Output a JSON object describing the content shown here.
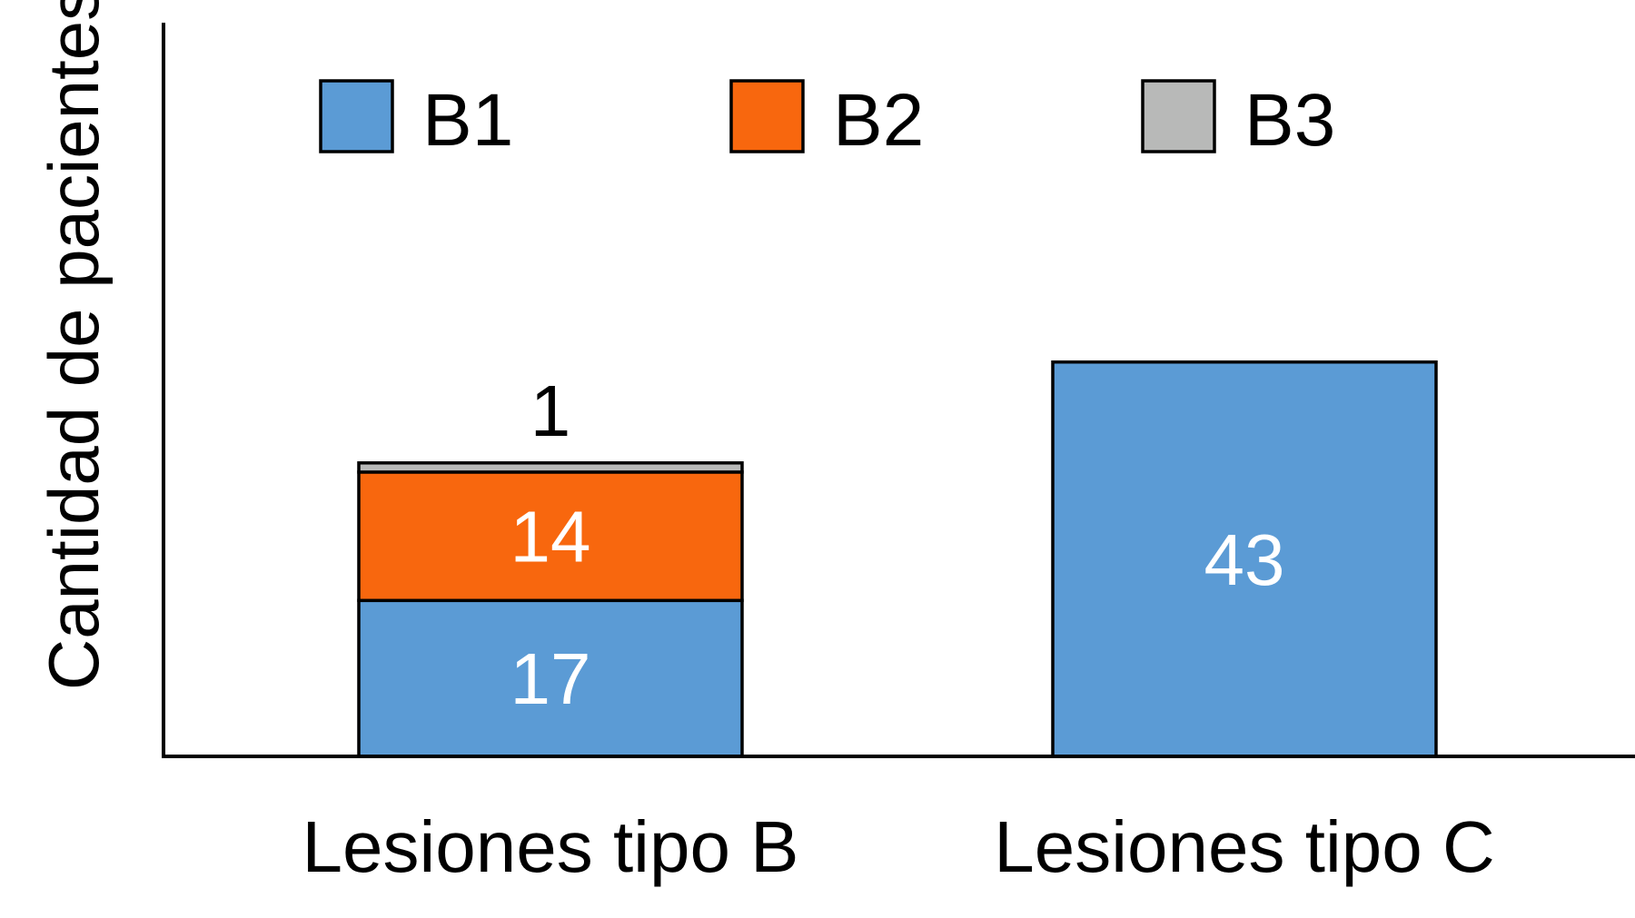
{
  "chart_data": {
    "type": "bar",
    "stacked": true,
    "title": "",
    "xlabel": "",
    "ylabel": "Cantidad de pacientes",
    "ylim": [
      0,
      80
    ],
    "grid": false,
    "legend_position": "top",
    "categories": [
      "Lesiones tipo B",
      "Lesiones tipo C"
    ],
    "series": [
      {
        "name": "B1",
        "color": "#5b9bd5",
        "values": [
          17,
          43
        ]
      },
      {
        "name": "B2",
        "color": "#f8670e",
        "values": [
          14,
          0
        ]
      },
      {
        "name": "B3",
        "color": "#b8b9b8",
        "values": [
          1,
          0
        ]
      }
    ],
    "data_labels": [
      {
        "category": 0,
        "series": 0,
        "text": "17",
        "color": "#ffffff",
        "placement": "inside"
      },
      {
        "category": 0,
        "series": 1,
        "text": "14",
        "color": "#ffffff",
        "placement": "inside"
      },
      {
        "category": 0,
        "series": 2,
        "text": "1",
        "color": "#000000",
        "placement": "above"
      },
      {
        "category": 1,
        "series": 0,
        "text": "43",
        "color": "#ffffff",
        "placement": "inside"
      }
    ]
  }
}
